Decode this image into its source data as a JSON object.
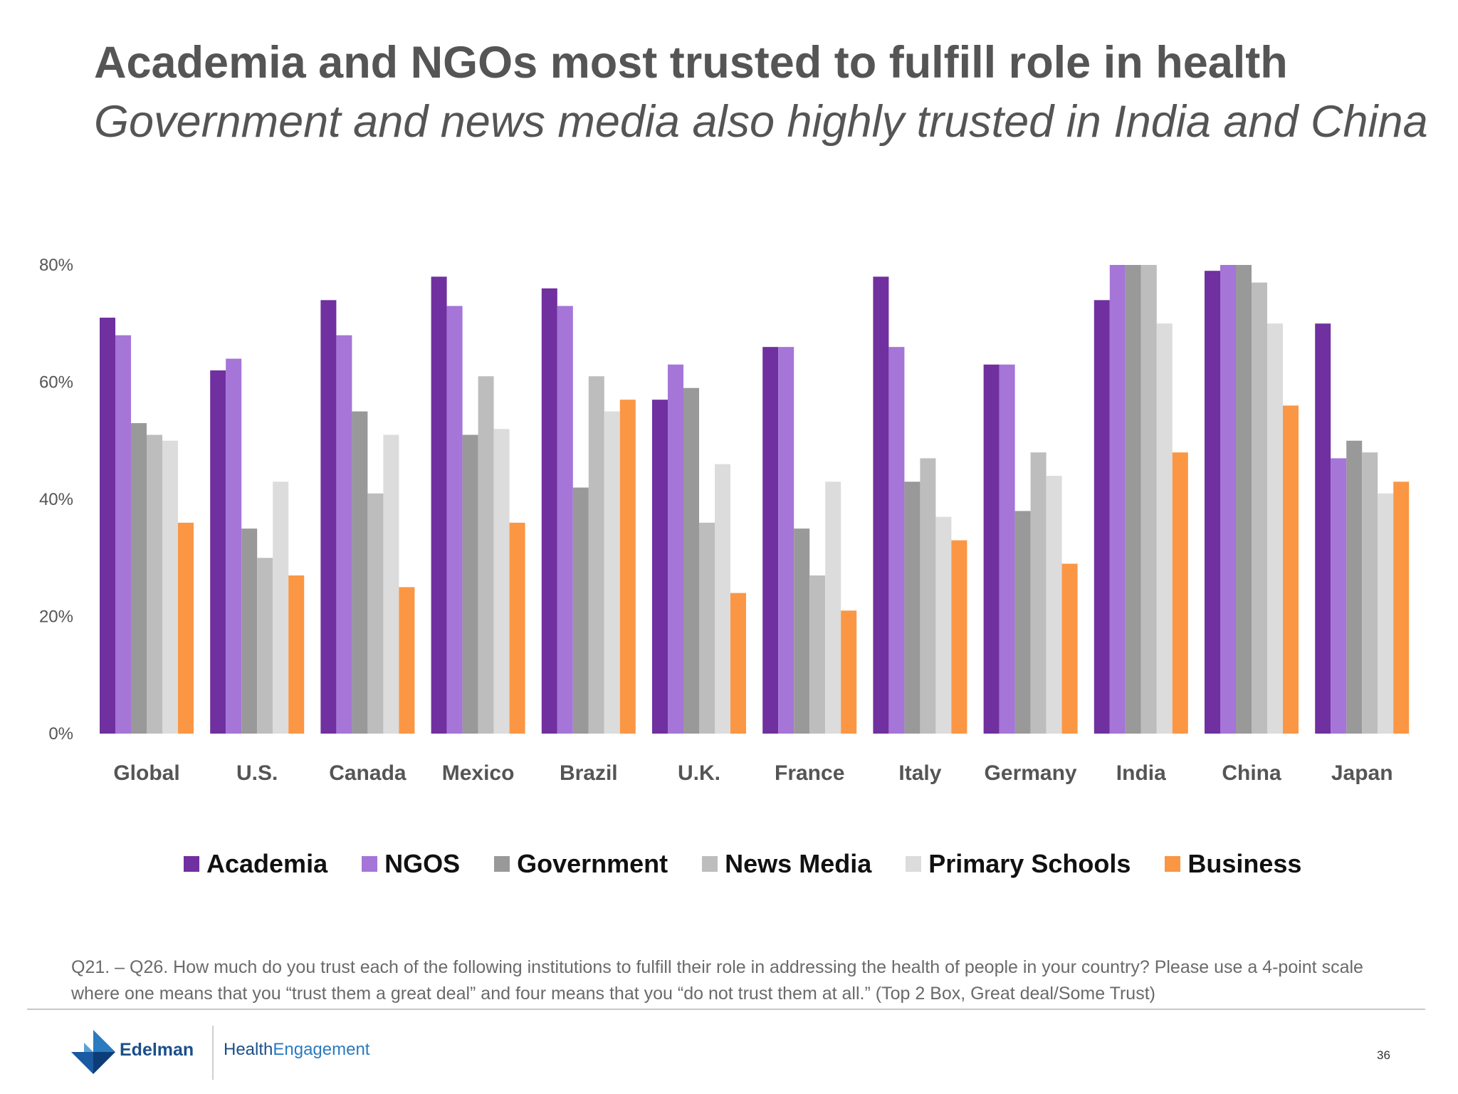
{
  "title": "Academia and NGOs most trusted to fulfill role in health",
  "subtitle": "Government and news media also highly trusted in India and China",
  "chart_data": {
    "type": "bar",
    "categories": [
      "Global",
      "U.S.",
      "Canada",
      "Mexico",
      "Brazil",
      "U.K.",
      "France",
      "Italy",
      "Germany",
      "India",
      "China",
      "Japan"
    ],
    "series": [
      {
        "name": "Academia",
        "color": "#7030a0",
        "values": [
          71,
          62,
          74,
          78,
          76,
          57,
          66,
          78,
          63,
          74,
          79,
          70
        ]
      },
      {
        "name": "NGOS",
        "color": "#a575d8",
        "values": [
          68,
          64,
          68,
          73,
          73,
          63,
          66,
          66,
          63,
          80,
          80,
          47
        ]
      },
      {
        "name": "Government",
        "color": "#999999",
        "values": [
          53,
          35,
          55,
          51,
          42,
          59,
          35,
          43,
          38,
          80,
          80,
          50
        ]
      },
      {
        "name": "News Media",
        "color": "#bdbdbd",
        "values": [
          51,
          30,
          41,
          61,
          61,
          36,
          27,
          47,
          48,
          80,
          77,
          48
        ]
      },
      {
        "name": "Primary Schools",
        "color": "#dcdcdc",
        "values": [
          50,
          43,
          51,
          52,
          55,
          46,
          43,
          37,
          44,
          70,
          70,
          41
        ]
      },
      {
        "name": "Business",
        "color": "#fb9644",
        "values": [
          36,
          27,
          25,
          36,
          57,
          24,
          21,
          33,
          29,
          48,
          56,
          43
        ]
      }
    ],
    "yticks": [
      "0%",
      "20%",
      "40%",
      "60%",
      "80%"
    ],
    "ylim": [
      0,
      80
    ],
    "grid": false,
    "legend_position": "bottom"
  },
  "footnote": "Q21. – Q26. How much do you trust each of the following institutions to fulfill their role in addressing the health of people in your country? Please use a 4-point scale where one means that you “trust them a great deal” and four means that you “do not trust them at all.” (Top 2 Box, Great deal/Some Trust)",
  "footer": {
    "logo_text": "Edelman",
    "brand_part1": "Health",
    "brand_part2": "Engagement",
    "page_number": "36"
  }
}
